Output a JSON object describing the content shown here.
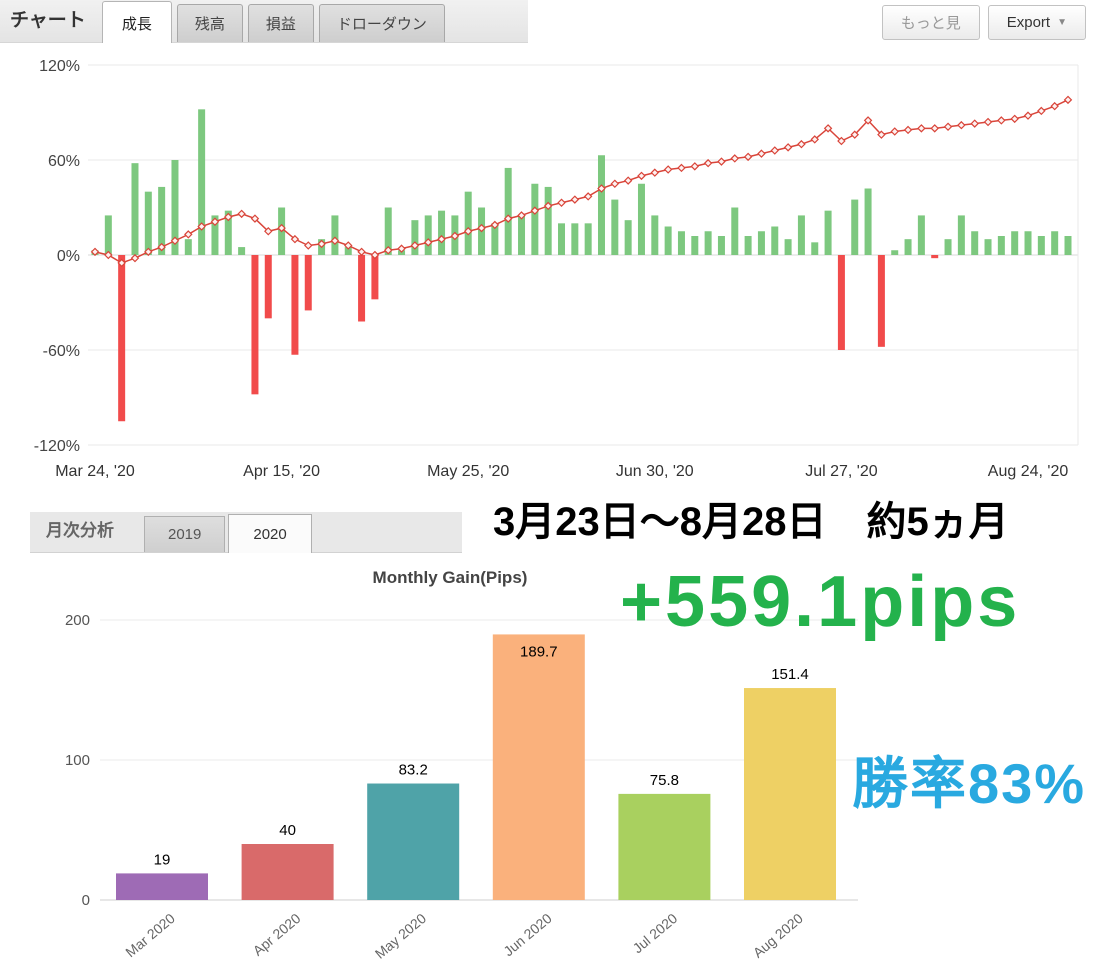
{
  "topbar": {
    "title": "チャート",
    "tabs": [
      {
        "label": "成長",
        "active": true
      },
      {
        "label": "残高",
        "active": false
      },
      {
        "label": "損益",
        "active": false
      },
      {
        "label": "ドローダウン",
        "active": false
      }
    ],
    "more_label": "もっと見",
    "export_label": "Export",
    "export_caret": "▼"
  },
  "monthly": {
    "section_label": "月次分析",
    "tabs": [
      {
        "label": "2019",
        "active": false
      },
      {
        "label": "2020",
        "active": true
      }
    ],
    "chart_title": "Monthly Gain(Pips)"
  },
  "overlay": {
    "period": "3月23日～8月28日　約5ヵ月",
    "total_pips": "+559.1pips",
    "win_rate": "勝率83%"
  },
  "colors": {
    "pips_green": "#24b24c",
    "winrate_blue": "#29a9e0"
  },
  "chart_data": [
    {
      "type": "bar",
      "title": "成長 (Growth)",
      "ylabel": "%",
      "ylim": [
        -120,
        120
      ],
      "yticks": [
        120,
        60,
        0,
        -60,
        -120
      ],
      "ytick_labels": [
        "120%",
        "60%",
        "0%",
        "-60%",
        "-120%"
      ],
      "xtick_labels": [
        "Mar 24, '20",
        "Apr 15, '20",
        "May 25, '20",
        "Jun 30, '20",
        "Jul 27, '20",
        "Aug 24, '20"
      ],
      "xtick_positions": [
        0,
        14,
        28,
        42,
        56,
        70
      ],
      "legend": "none",
      "grid": true,
      "bar_series": {
        "name": "daily-gain-percent",
        "values": [
          3,
          25,
          -105,
          58,
          40,
          43,
          60,
          10,
          92,
          25,
          28,
          5,
          -88,
          -40,
          30,
          -63,
          -35,
          10,
          25,
          5,
          -42,
          -28,
          30,
          3,
          22,
          25,
          28,
          25,
          40,
          30,
          20,
          55,
          25,
          45,
          43,
          20,
          20,
          20,
          63,
          35,
          22,
          45,
          25,
          18,
          15,
          12,
          15,
          12,
          30,
          12,
          15,
          18,
          10,
          25,
          8,
          28,
          -60,
          35,
          42,
          -58,
          3,
          10,
          25,
          -2,
          10,
          25,
          15,
          10,
          12,
          15,
          15,
          12,
          15,
          12
        ]
      },
      "line_series": {
        "name": "cumulative-growth-percent",
        "values": [
          2,
          0,
          -5,
          -2,
          2,
          5,
          9,
          13,
          18,
          21,
          24,
          26,
          23,
          15,
          17,
          10,
          6,
          7,
          9,
          6,
          2,
          0,
          3,
          4,
          6,
          8,
          10,
          12,
          15,
          17,
          19,
          23,
          25,
          28,
          31,
          33,
          35,
          37,
          42,
          45,
          47,
          50,
          52,
          54,
          55,
          56,
          58,
          59,
          61,
          62,
          64,
          66,
          68,
          70,
          73,
          80,
          72,
          76,
          85,
          76,
          78,
          79,
          80,
          80,
          81,
          82,
          83,
          84,
          85,
          86,
          88,
          91,
          94,
          98
        ]
      },
      "colors": {
        "bar_positive": "#7dc87f",
        "bar_negative": "#f14b4b",
        "line": "#d9453a",
        "grid": "#eaeaea"
      }
    },
    {
      "type": "bar",
      "title": "Monthly Gain(Pips)",
      "categories": [
        "Mar 2020",
        "Apr 2020",
        "May 2020",
        "Jun 2020",
        "Jul 2020",
        "Aug 2020"
      ],
      "values": [
        19,
        40,
        83.2,
        189.7,
        75.8,
        151.4
      ],
      "value_labels": [
        "19",
        "40",
        "83.2",
        "189.7",
        "75.8",
        "151.4"
      ],
      "bar_colors": [
        "#9e6bb5",
        "#d96a6a",
        "#4fa3a8",
        "#fab17c",
        "#a9d05f",
        "#eed064"
      ],
      "ylim": [
        0,
        220
      ],
      "yticks": [
        0,
        100,
        200
      ],
      "legend": "none",
      "grid": true
    }
  ]
}
